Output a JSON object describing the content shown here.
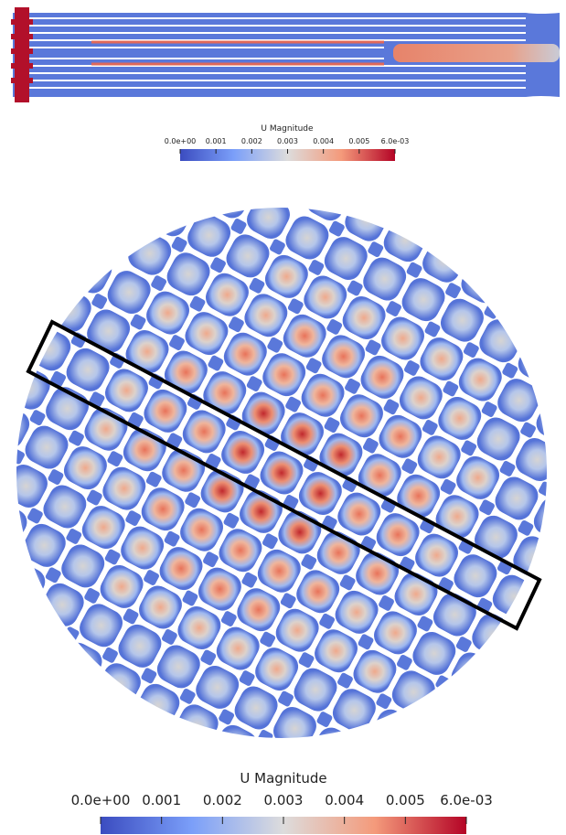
{
  "top_colorbar": {
    "title": "U Magnitude",
    "ticks": [
      "0.0e+00",
      "0.001",
      "0.002",
      "0.003",
      "0.004",
      "0.005",
      "6.0e-03"
    ]
  },
  "bottom_colorbar": {
    "title": "U Magnitude",
    "ticks": [
      "0.0e+00",
      "0.001",
      "0.002",
      "0.003",
      "0.004",
      "0.005",
      "6.0e-03"
    ]
  }
}
